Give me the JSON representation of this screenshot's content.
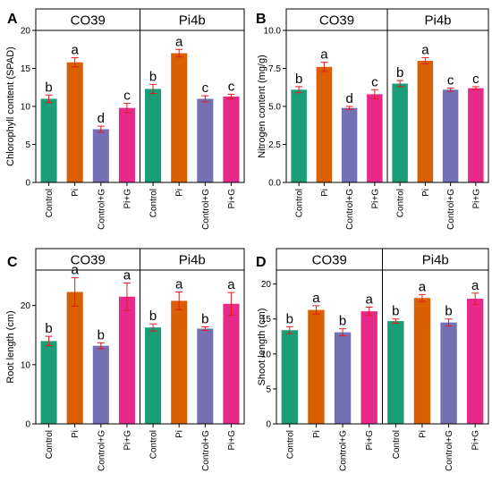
{
  "colors": {
    "Control": "#1b9e77",
    "Pi": "#d95f02",
    "Control+G": "#7570b3",
    "Pi+G": "#e7298a",
    "errorbar": "#e31a1c"
  },
  "chart_data": [
    {
      "panel": "A",
      "type": "bar",
      "ylabel": "Chlorophyll content (SPAD)",
      "ylim": [
        0,
        20
      ],
      "yticks": [
        0,
        5,
        10,
        15,
        20
      ],
      "facets": [
        {
          "name": "CO39",
          "categories": [
            "Control",
            "Pi",
            "Control+G",
            "Pi+G"
          ],
          "values": [
            11.0,
            15.8,
            7.0,
            9.8
          ],
          "errors": [
            0.5,
            0.6,
            0.4,
            0.6
          ],
          "letters": [
            "b",
            "a",
            "d",
            "c"
          ]
        },
        {
          "name": "Pi4b",
          "categories": [
            "Control",
            "Pi",
            "Control+G",
            "Pi+G"
          ],
          "values": [
            12.3,
            17.0,
            11.0,
            11.3
          ],
          "errors": [
            0.6,
            0.5,
            0.4,
            0.3
          ],
          "letters": [
            "b",
            "a",
            "c",
            "c"
          ]
        }
      ]
    },
    {
      "panel": "B",
      "type": "bar",
      "ylabel": "Nitrogen content (mg/g)",
      "ylim": [
        0,
        10
      ],
      "yticks": [
        0.0,
        2.5,
        5.0,
        7.5,
        10.0
      ],
      "yticklabels": [
        "0.0",
        "2.5",
        "5.0",
        "7.5",
        "10.0"
      ],
      "facets": [
        {
          "name": "CO39",
          "categories": [
            "Control",
            "Pi",
            "Control+G",
            "Pi+G"
          ],
          "values": [
            6.1,
            7.6,
            4.9,
            5.8
          ],
          "errors": [
            0.2,
            0.3,
            0.1,
            0.3
          ],
          "letters": [
            "b",
            "a",
            "d",
            "c"
          ]
        },
        {
          "name": "Pi4b",
          "categories": [
            "Control",
            "Pi",
            "Control+G",
            "Pi+G"
          ],
          "values": [
            6.5,
            8.0,
            6.1,
            6.2
          ],
          "errors": [
            0.2,
            0.2,
            0.1,
            0.1
          ],
          "letters": [
            "b",
            "a",
            "c",
            "c"
          ]
        }
      ]
    },
    {
      "panel": "C",
      "type": "bar",
      "ylabel": "Root length (cm)",
      "ylim": [
        0,
        26
      ],
      "yticks": [
        0,
        10,
        20
      ],
      "facets": [
        {
          "name": "CO39",
          "categories": [
            "Control",
            "Pi",
            "Control+G",
            "Pi+G"
          ],
          "values": [
            14.0,
            22.3,
            13.2,
            21.5
          ],
          "errors": [
            0.8,
            2.4,
            0.5,
            2.3
          ],
          "letters": [
            "b",
            "a",
            "b",
            "a"
          ]
        },
        {
          "name": "Pi4b",
          "categories": [
            "Control",
            "Pi",
            "Control+G",
            "Pi+G"
          ],
          "values": [
            16.3,
            20.8,
            16.1,
            20.3
          ],
          "errors": [
            0.6,
            1.5,
            0.3,
            1.9
          ],
          "letters": [
            "b",
            "a",
            "b",
            "a"
          ]
        }
      ]
    },
    {
      "panel": "D",
      "type": "bar",
      "ylabel": "Shoot length (cm)",
      "ylim": [
        0,
        22
      ],
      "yticks": [
        0,
        5,
        10,
        15,
        20
      ],
      "facets": [
        {
          "name": "CO39",
          "categories": [
            "Control",
            "Pi",
            "Control+G",
            "Pi+G"
          ],
          "values": [
            13.4,
            16.3,
            13.1,
            16.1
          ],
          "errors": [
            0.5,
            0.6,
            0.5,
            0.6
          ],
          "letters": [
            "b",
            "a",
            "b",
            "a"
          ]
        },
        {
          "name": "Pi4b",
          "categories": [
            "Control",
            "Pi",
            "Control+G",
            "Pi+G"
          ],
          "values": [
            14.7,
            18.0,
            14.5,
            17.9
          ],
          "errors": [
            0.3,
            0.5,
            0.5,
            0.8
          ],
          "letters": [
            "b",
            "a",
            "b",
            "a"
          ]
        }
      ]
    }
  ]
}
